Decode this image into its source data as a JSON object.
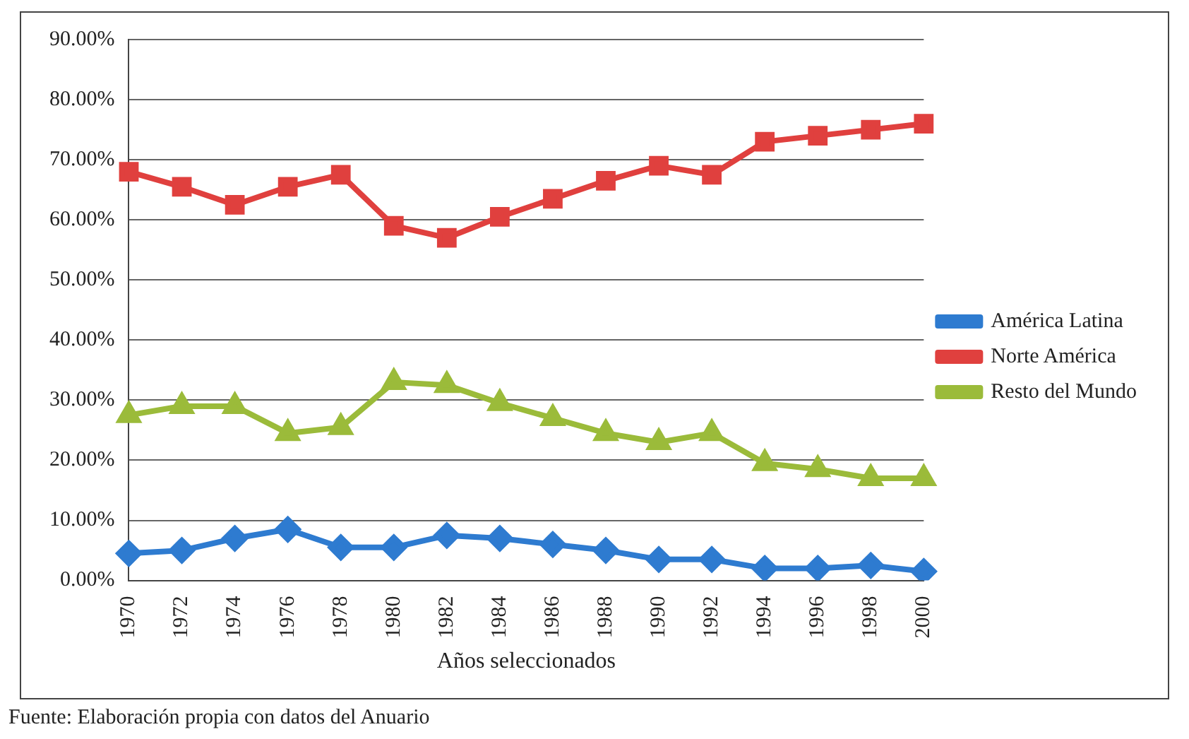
{
  "chart_data": {
    "type": "line",
    "xlabel": "Años seleccionados",
    "categories": [
      "1970",
      "1972",
      "1974",
      "1976",
      "1978",
      "1980",
      "1982",
      "1984",
      "1986",
      "1988",
      "1990",
      "1992",
      "1994",
      "1996",
      "1998",
      "2000"
    ],
    "series": [
      {
        "name": "América Latina",
        "color": "#2e7bd0",
        "marker": "diamond",
        "values": [
          4.5,
          5,
          7,
          8.5,
          5.5,
          5.5,
          7.5,
          7,
          6,
          5,
          3.5,
          3.5,
          2,
          2,
          2.5,
          1.5
        ]
      },
      {
        "name": "Norte América",
        "color": "#e0403e",
        "marker": "square",
        "values": [
          68,
          65.5,
          62.5,
          65.5,
          67.5,
          59,
          57,
          60.5,
          63.5,
          66.5,
          69,
          67.5,
          73,
          74,
          75,
          76
        ]
      },
      {
        "name": "Resto del Mundo",
        "color": "#9bbb3a",
        "marker": "triangle",
        "values": [
          27.5,
          29,
          29,
          24.5,
          25.5,
          33,
          32.5,
          29.5,
          27,
          24.5,
          23,
          24.5,
          19.5,
          18.5,
          17,
          17
        ]
      }
    ],
    "ylim": [
      0,
      90
    ],
    "yticks": [
      {
        "value": 0,
        "label": "0.00%"
      },
      {
        "value": 10,
        "label": "10.00%"
      },
      {
        "value": 20,
        "label": "20.00%"
      },
      {
        "value": 30,
        "label": "30.00%"
      },
      {
        "value": 40,
        "label": "40.00%"
      },
      {
        "value": 50,
        "label": "50.00%"
      },
      {
        "value": 60,
        "label": "60.00%"
      },
      {
        "value": 70,
        "label": "70.00%"
      },
      {
        "value": 80,
        "label": "80.00%"
      },
      {
        "value": 90,
        "label": "90.00%"
      }
    ],
    "grid": "y",
    "legend": "right",
    "annotations": [
      "Fuente: Elaboración propia con datos del Anuario"
    ]
  }
}
